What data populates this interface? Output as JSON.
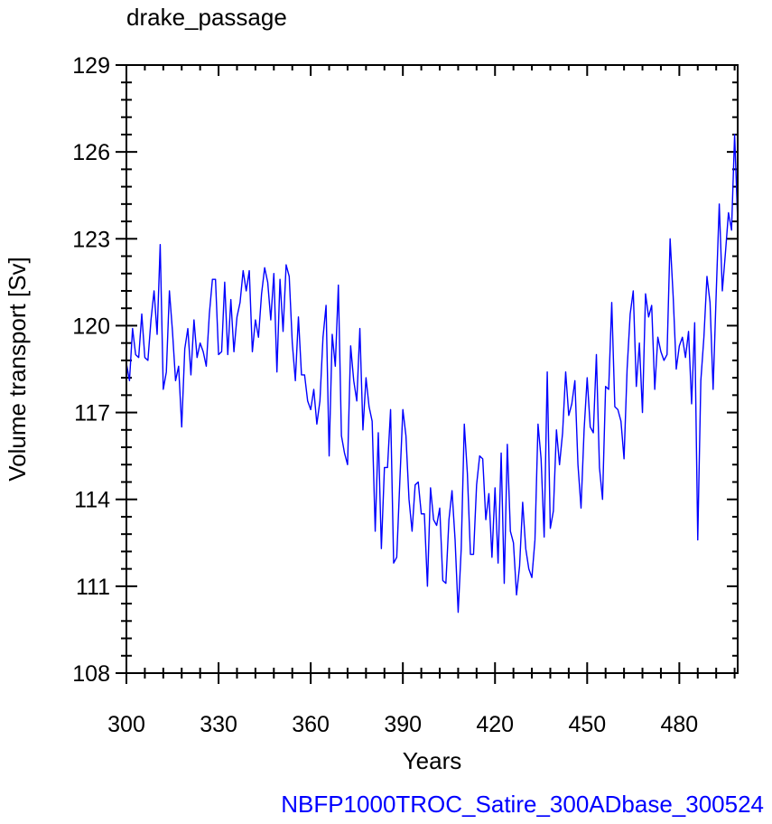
{
  "chart_data": {
    "type": "line",
    "title": "drake_passage",
    "xlabel": "Years",
    "ylabel": "Volume transport [Sv]",
    "xlim": [
      300,
      499
    ],
    "ylim": [
      108,
      129
    ],
    "xticks": [
      300,
      330,
      360,
      390,
      420,
      450,
      480
    ],
    "yticks": [
      108,
      111,
      114,
      117,
      120,
      123,
      126,
      129
    ],
    "grid": false,
    "series": [
      {
        "color": "#0000ff",
        "x_start": 300,
        "x_step": 1,
        "values": [
          118.7,
          118.1,
          119.9,
          119.0,
          118.9,
          120.4,
          118.9,
          118.8,
          120.2,
          121.2,
          119.7,
          122.8,
          117.8,
          118.4,
          121.2,
          119.8,
          118.1,
          118.6,
          116.5,
          119.2,
          119.9,
          118.3,
          120.2,
          118.9,
          119.4,
          119.1,
          118.6,
          120.4,
          121.6,
          121.6,
          119.0,
          119.1,
          121.5,
          119.0,
          120.9,
          119.1,
          120.3,
          120.8,
          121.9,
          121.2,
          121.9,
          119.1,
          120.2,
          119.6,
          121.1,
          122.0,
          121.5,
          120.2,
          121.8,
          118.4,
          121.6,
          119.8,
          122.1,
          121.7,
          119.4,
          118.1,
          120.3,
          118.3,
          118.3,
          117.4,
          117.1,
          117.8,
          116.6,
          117.4,
          119.6,
          120.7,
          115.5,
          119.7,
          118.6,
          121.4,
          116.2,
          115.6,
          115.2,
          119.3,
          118.1,
          117.4,
          119.9,
          116.4,
          118.2,
          117.2,
          116.7,
          112.9,
          116.3,
          112.3,
          115.1,
          115.1,
          117.1,
          111.8,
          112.0,
          114.6,
          117.1,
          116.2,
          114.0,
          112.9,
          114.5,
          114.6,
          113.5,
          113.5,
          111.0,
          114.4,
          113.3,
          113.1,
          113.7,
          111.2,
          111.1,
          113.3,
          114.3,
          112.6,
          110.1,
          112.3,
          116.6,
          114.9,
          112.1,
          112.1,
          114.5,
          115.5,
          115.4,
          113.3,
          114.2,
          112.0,
          114.4,
          111.8,
          115.6,
          111.1,
          115.9,
          112.9,
          112.5,
          110.7,
          111.7,
          113.9,
          112.3,
          111.6,
          111.3,
          112.6,
          116.6,
          115.4,
          112.7,
          118.4,
          113.0,
          113.6,
          116.4,
          115.2,
          116.3,
          118.4,
          116.9,
          117.3,
          118.1,
          115.2,
          113.7,
          116.4,
          118.2,
          116.5,
          116.3,
          119.0,
          115.1,
          114.0,
          117.9,
          117.8,
          120.8,
          117.2,
          117.1,
          116.7,
          115.4,
          118.5,
          120.4,
          121.2,
          117.9,
          119.4,
          117.0,
          121.1,
          120.3,
          120.7,
          117.8,
          119.6,
          119.1,
          118.8,
          119.0,
          123.0,
          121.0,
          118.5,
          119.3,
          119.6,
          118.9,
          119.8,
          117.3,
          120.1,
          112.6,
          118.1,
          119.6,
          121.7,
          120.8,
          117.8,
          121.1,
          124.2,
          121.2,
          122.5,
          123.9,
          123.3,
          126.6,
          123.6
        ]
      }
    ]
  },
  "footer_text": "NBFP1000TROC_Satire_300ADbase_300524"
}
